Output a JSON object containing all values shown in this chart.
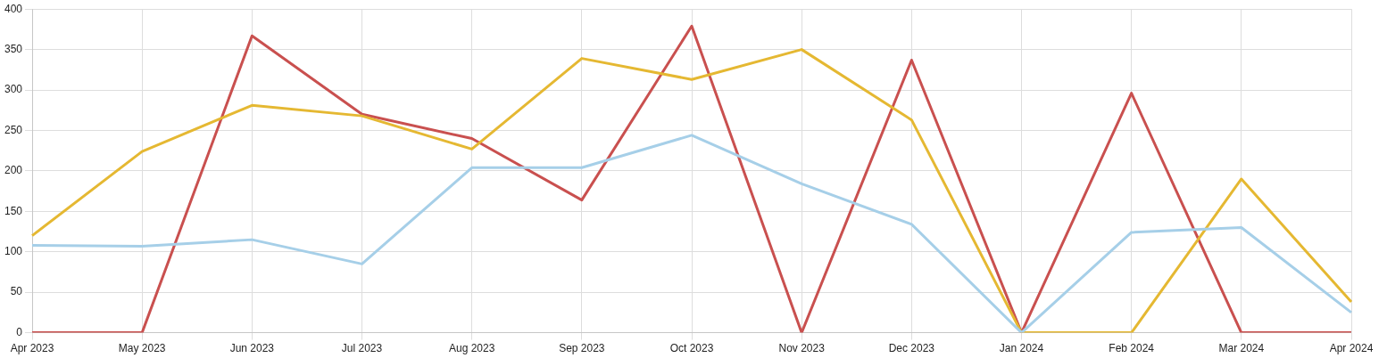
{
  "chart_data": {
    "type": "line",
    "categories": [
      "Apr 2023",
      "May 2023",
      "Jun 2023",
      "Jul 2023",
      "Aug 2023",
      "Sep 2023",
      "Oct 2023",
      "Nov 2023",
      "Dec 2023",
      "Jan 2024",
      "Feb 2024",
      "Mar 2024",
      "Apr 2024"
    ],
    "series": [
      {
        "color": "#a6cfe8",
        "values": [
          108,
          107,
          115,
          85,
          204,
          204,
          244,
          184,
          134,
          0,
          124,
          130,
          25
        ]
      },
      {
        "color": "#e5b832",
        "values": [
          120,
          224,
          281,
          268,
          227,
          339,
          313,
          350,
          263,
          0,
          0,
          190,
          38
        ]
      },
      {
        "color": "#c9504f",
        "values": [
          0,
          0,
          367,
          270,
          240,
          164,
          379,
          0,
          337,
          0,
          296,
          0,
          0
        ]
      }
    ],
    "ylim": [
      0,
      400
    ],
    "yticks": [
      0,
      50,
      100,
      150,
      200,
      250,
      300,
      350,
      400
    ],
    "grid": true,
    "legend": false,
    "marker": "none",
    "line_style": "solid"
  }
}
